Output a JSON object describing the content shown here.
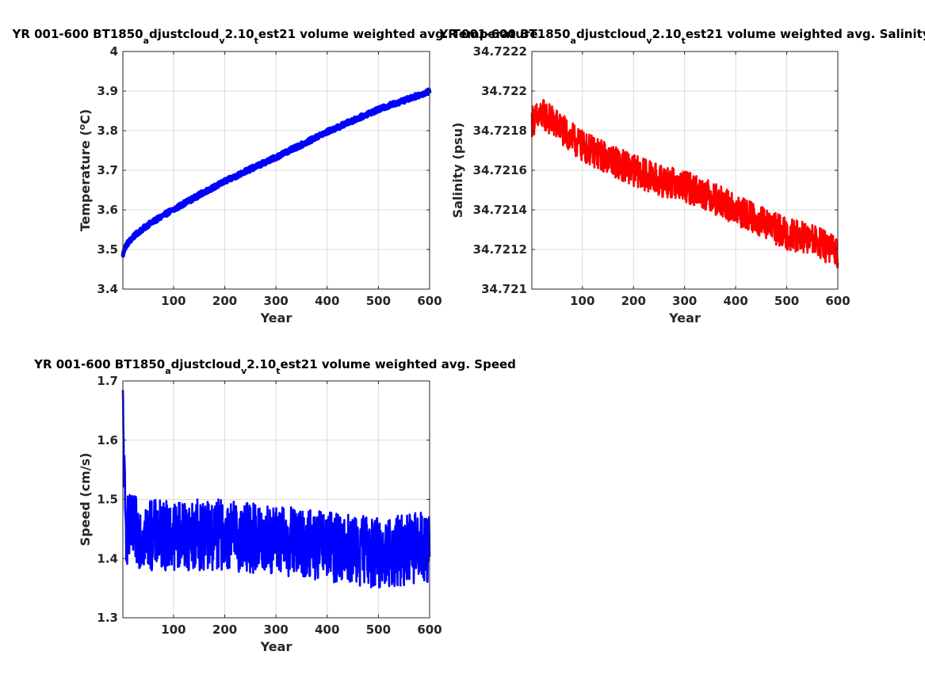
{
  "figure": {
    "panels": [
      {
        "id": "temperature",
        "title_main": "YR 001-600 BT1850",
        "title_parts": [
          {
            "t": "YR 001-600 BT1850",
            "s": "n"
          },
          {
            "t": "a",
            "s": "sub"
          },
          {
            "t": "djustcloud",
            "s": "n"
          },
          {
            "t": "v",
            "s": "sub"
          },
          {
            "t": "2.10",
            "s": "n"
          },
          {
            "t": "t",
            "s": "sub"
          },
          {
            "t": "est21 volume weighted avg. Temperature",
            "s": "n"
          }
        ],
        "ylabel_parts": [
          {
            "t": "Temperature (",
            "s": "n"
          },
          {
            "t": "o",
            "s": "sup"
          },
          {
            "t": "C)",
            "s": "n"
          }
        ],
        "xlabel": "Year",
        "yticks": [
          "3.4",
          "3.5",
          "3.6",
          "3.7",
          "3.8",
          "3.9",
          "4"
        ],
        "xticks": [
          "100",
          "200",
          "300",
          "400",
          "500",
          "600"
        ]
      },
      {
        "id": "salinity",
        "title_parts": [
          {
            "t": "YR 001-600 BT1850",
            "s": "n"
          },
          {
            "t": "a",
            "s": "sub"
          },
          {
            "t": "djustcloud",
            "s": "n"
          },
          {
            "t": "v",
            "s": "sub"
          },
          {
            "t": "2.10",
            "s": "n"
          },
          {
            "t": "t",
            "s": "sub"
          },
          {
            "t": "est21 volume weighted avg. Salinity",
            "s": "n"
          }
        ],
        "ylabel_parts": [
          {
            "t": "Salinity (psu)",
            "s": "n"
          }
        ],
        "xlabel": "Year",
        "yticks": [
          "34.721",
          "34.7212",
          "34.7214",
          "34.7216",
          "34.7218",
          "34.722",
          "34.7222"
        ],
        "xticks": [
          "100",
          "200",
          "300",
          "400",
          "500",
          "600"
        ]
      },
      {
        "id": "speed",
        "title_parts": [
          {
            "t": "YR 001-600 BT1850",
            "s": "n"
          },
          {
            "t": "a",
            "s": "sub"
          },
          {
            "t": "djustcloud",
            "s": "n"
          },
          {
            "t": "v",
            "s": "sub"
          },
          {
            "t": "2.10",
            "s": "n"
          },
          {
            "t": "t",
            "s": "sub"
          },
          {
            "t": "est21 volume weighted avg. Speed",
            "s": "n"
          }
        ],
        "ylabel_parts": [
          {
            "t": "Speed (cm/s)",
            "s": "n"
          }
        ],
        "xlabel": "Year",
        "yticks": [
          "1.3",
          "1.4",
          "1.5",
          "1.6",
          "1.7"
        ],
        "xticks": [
          "100",
          "200",
          "300",
          "400",
          "500",
          "600"
        ]
      }
    ]
  },
  "chart_data": [
    {
      "type": "line",
      "title": "YR 001-600 BT1850_adjustcloud_v2.10_test21 volume weighted avg. Temperature",
      "xlabel": "Year",
      "ylabel": "Temperature (oC)",
      "xlim": [
        1,
        600
      ],
      "ylim": [
        3.4,
        4.0
      ],
      "grid": true,
      "color": "#0000ff",
      "x": [
        1,
        5,
        10,
        20,
        30,
        40,
        50,
        60,
        70,
        80,
        90,
        100,
        120,
        140,
        160,
        180,
        200,
        220,
        240,
        260,
        280,
        300,
        320,
        340,
        360,
        380,
        400,
        420,
        440,
        460,
        480,
        500,
        520,
        540,
        560,
        580,
        600
      ],
      "y": [
        3.485,
        3.505,
        3.515,
        3.53,
        3.542,
        3.552,
        3.562,
        3.57,
        3.578,
        3.586,
        3.594,
        3.6,
        3.616,
        3.63,
        3.645,
        3.658,
        3.672,
        3.684,
        3.697,
        3.709,
        3.721,
        3.733,
        3.746,
        3.758,
        3.771,
        3.784,
        3.797,
        3.808,
        3.82,
        3.831,
        3.843,
        3.853,
        3.863,
        3.872,
        3.881,
        3.89,
        3.9
      ],
      "noise_amplitude": 0.006
    },
    {
      "type": "line",
      "title": "YR 001-600 BT1850_adjustcloud_v2.10_test21 volume weighted avg. Salinity",
      "xlabel": "Year",
      "ylabel": "Salinity (psu)",
      "xlim": [
        1,
        600
      ],
      "ylim": [
        34.721,
        34.7222
      ],
      "grid": true,
      "color": "#ff0000",
      "x": [
        1,
        25,
        50,
        75,
        100,
        150,
        200,
        250,
        300,
        350,
        400,
        450,
        500,
        550,
        600
      ],
      "y": [
        34.72185,
        34.72188,
        34.72183,
        34.72177,
        34.72172,
        34.72166,
        34.7216,
        34.72155,
        34.72152,
        34.72147,
        34.7214,
        34.72134,
        34.72128,
        34.72125,
        34.72118
      ],
      "noise_amplitude": 8e-05
    },
    {
      "type": "line",
      "title": "YR 001-600 BT1850_adjustcloud_v2.10_test21 volume weighted avg. Speed",
      "xlabel": "Year",
      "ylabel": "Speed (cm/s)",
      "xlim": [
        1,
        600
      ],
      "ylim": [
        1.3,
        1.7
      ],
      "grid": true,
      "color": "#0000ff",
      "x": [
        1,
        5,
        50,
        100,
        200,
        300,
        400,
        500,
        600
      ],
      "y": [
        1.65,
        1.45,
        1.44,
        1.44,
        1.44,
        1.43,
        1.42,
        1.41,
        1.42
      ],
      "noise_amplitude": 0.06
    }
  ]
}
